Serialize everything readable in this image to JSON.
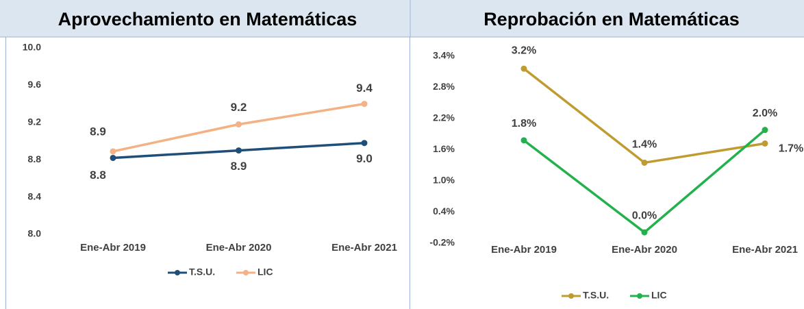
{
  "chart_data": [
    {
      "type": "line",
      "title": "Aprovechamiento en Matemáticas",
      "categories": [
        "Ene-Abr 2019",
        "Ene-Abr 2020",
        "Ene-Abr 2021"
      ],
      "series": [
        {
          "name": "T.S.U.",
          "color": "#1f4e79",
          "values": [
            8.82,
            8.9,
            8.98
          ],
          "value_labels": [
            "8.8",
            "8.9",
            "9.0"
          ]
        },
        {
          "name": "LIC",
          "color": "#f4b183",
          "values": [
            8.89,
            9.18,
            9.4
          ],
          "value_labels": [
            "8.9",
            "9.2",
            "9.4"
          ]
        }
      ],
      "ylim": [
        8,
        10
      ],
      "yticks": [
        {
          "value": 8,
          "label": "8.0"
        },
        8.4,
        8.8,
        9.2,
        9.6,
        {
          "value": 10,
          "label": "10.0"
        }
      ]
    },
    {
      "type": "line",
      "title": "Reprobación en Matemáticas",
      "categories": [
        "Ene-Abr 2019",
        "Ene-Abr 2020",
        "Ene-Abr 2021"
      ],
      "series": [
        {
          "name": "T.S.U.",
          "color": "#bf9b30",
          "values": [
            3.16,
            1.35,
            1.72
          ],
          "value_labels": [
            "3.2%",
            "1.4%",
            "1.7%"
          ]
        },
        {
          "name": "LIC",
          "color": "#22b14c",
          "values": [
            1.78,
            0.01,
            1.98
          ],
          "value_labels": [
            "1.8%",
            "0.0%",
            "2.0%"
          ]
        }
      ],
      "ylim": [
        -0.2,
        3.4
      ],
      "yticks": [
        {
          "value": -0.2,
          "label": "-0.2%"
        },
        {
          "value": 0.4,
          "label": "0.4%"
        },
        {
          "value": 1,
          "label": "1.0%"
        },
        {
          "value": 1.6,
          "label": "1.6%"
        },
        {
          "value": 2.2,
          "label": "2.2%"
        },
        {
          "value": 2.8,
          "label": "2.8%"
        },
        {
          "value": 3.4,
          "label": "3.4%"
        }
      ]
    }
  ]
}
